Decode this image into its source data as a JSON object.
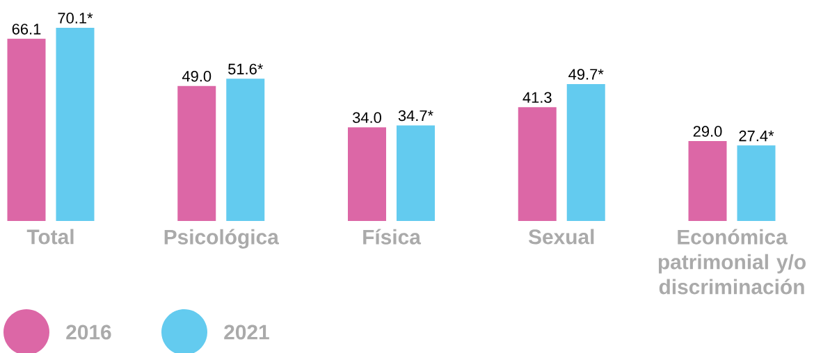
{
  "chart_data": {
    "type": "bar",
    "categories": [
      "Total",
      "Psicológica",
      "Física",
      "Sexual",
      "Económica patrimonial y/o discriminación"
    ],
    "series": [
      {
        "name": "2016",
        "color": "#dc67a6",
        "values": [
          66.1,
          49.0,
          34.0,
          41.3,
          29.0
        ],
        "value_labels": [
          "66.1",
          "49.0",
          "34.0",
          "41.3",
          "29.0"
        ]
      },
      {
        "name": "2021",
        "color": "#63cbef",
        "values": [
          70.1,
          51.6,
          34.7,
          49.7,
          27.4
        ],
        "value_labels": [
          "70.1*",
          "51.6*",
          "34.7*",
          "49.7*",
          "27.4*"
        ]
      }
    ],
    "legend": "bottom left"
  }
}
